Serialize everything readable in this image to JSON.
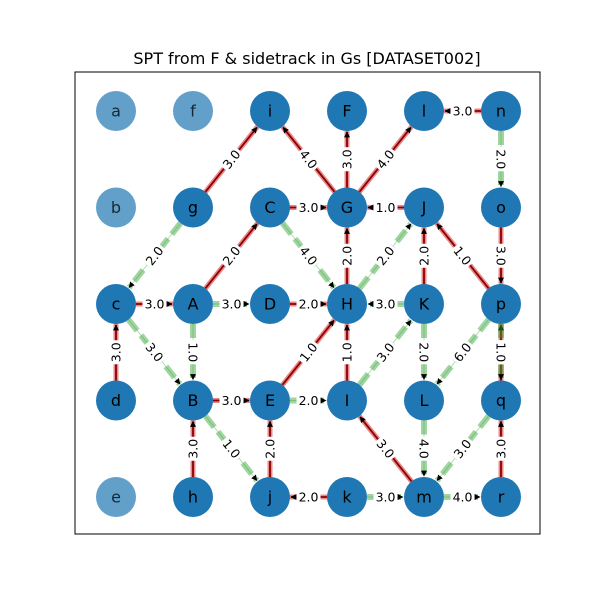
{
  "title": "SPT from F & sidetrack in Gs [DATASET002]",
  "colors": {
    "node": "#1f77b4",
    "tree_edge": "#8b0000",
    "tree_edge_highlight": "#d62728",
    "sidetrack_edge": "#2ca02c",
    "arrow": "#000000"
  },
  "nodes": [
    {
      "id": "a",
      "col": 0,
      "row": 0,
      "faded": true
    },
    {
      "id": "f",
      "col": 1,
      "row": 0,
      "faded": true
    },
    {
      "id": "i",
      "col": 2,
      "row": 0,
      "faded": false
    },
    {
      "id": "F",
      "col": 3,
      "row": 0,
      "faded": false
    },
    {
      "id": "l",
      "col": 4,
      "row": 0,
      "faded": false
    },
    {
      "id": "n",
      "col": 5,
      "row": 0,
      "faded": false
    },
    {
      "id": "b",
      "col": 0,
      "row": 1,
      "faded": true
    },
    {
      "id": "g",
      "col": 1,
      "row": 1,
      "faded": false
    },
    {
      "id": "C",
      "col": 2,
      "row": 1,
      "faded": false
    },
    {
      "id": "G",
      "col": 3,
      "row": 1,
      "faded": false
    },
    {
      "id": "J",
      "col": 4,
      "row": 1,
      "faded": false
    },
    {
      "id": "o",
      "col": 5,
      "row": 1,
      "faded": false
    },
    {
      "id": "c",
      "col": 0,
      "row": 2,
      "faded": false
    },
    {
      "id": "A",
      "col": 1,
      "row": 2,
      "faded": false
    },
    {
      "id": "D",
      "col": 2,
      "row": 2,
      "faded": false
    },
    {
      "id": "H",
      "col": 3,
      "row": 2,
      "faded": false
    },
    {
      "id": "K",
      "col": 4,
      "row": 2,
      "faded": false
    },
    {
      "id": "p",
      "col": 5,
      "row": 2,
      "faded": false
    },
    {
      "id": "d",
      "col": 0,
      "row": 3,
      "faded": false
    },
    {
      "id": "B",
      "col": 1,
      "row": 3,
      "faded": false
    },
    {
      "id": "E",
      "col": 2,
      "row": 3,
      "faded": false
    },
    {
      "id": "I",
      "col": 3,
      "row": 3,
      "faded": false
    },
    {
      "id": "L",
      "col": 4,
      "row": 3,
      "faded": false
    },
    {
      "id": "q",
      "col": 5,
      "row": 3,
      "faded": false
    },
    {
      "id": "e",
      "col": 0,
      "row": 4,
      "faded": true
    },
    {
      "id": "h",
      "col": 1,
      "row": 4,
      "faded": false
    },
    {
      "id": "j",
      "col": 2,
      "row": 4,
      "faded": false
    },
    {
      "id": "k",
      "col": 3,
      "row": 4,
      "faded": false
    },
    {
      "id": "m",
      "col": 4,
      "row": 4,
      "faded": false
    },
    {
      "id": "r",
      "col": 5,
      "row": 4,
      "faded": false
    }
  ],
  "edges": [
    {
      "from": "n",
      "to": "l",
      "label": "3.0",
      "kind": "tree"
    },
    {
      "from": "G",
      "to": "F",
      "label": "3.0",
      "kind": "tree"
    },
    {
      "from": "G",
      "to": "i",
      "label": "4.0",
      "kind": "tree"
    },
    {
      "from": "G",
      "to": "l",
      "label": "4.0",
      "kind": "tree"
    },
    {
      "from": "g",
      "to": "i",
      "label": "3.0",
      "kind": "tree"
    },
    {
      "from": "C",
      "to": "G",
      "label": "3.0",
      "kind": "tree"
    },
    {
      "from": "J",
      "to": "G",
      "label": "1.0",
      "kind": "tree"
    },
    {
      "from": "H",
      "to": "G",
      "label": "2.0",
      "kind": "tree"
    },
    {
      "from": "A",
      "to": "C",
      "label": "2.0",
      "kind": "tree"
    },
    {
      "from": "p",
      "to": "J",
      "label": "1.0",
      "kind": "tree"
    },
    {
      "from": "K",
      "to": "J",
      "label": "2.0",
      "kind": "tree"
    },
    {
      "from": "o",
      "to": "p",
      "label": "3.0",
      "kind": "tree"
    },
    {
      "from": "c",
      "to": "A",
      "label": "3.0",
      "kind": "tree"
    },
    {
      "from": "D",
      "to": "H",
      "label": "2.0",
      "kind": "tree"
    },
    {
      "from": "E",
      "to": "H",
      "label": "1.0",
      "kind": "tree"
    },
    {
      "from": "I",
      "to": "H",
      "label": "1.0",
      "kind": "tree"
    },
    {
      "from": "d",
      "to": "c",
      "label": "3.0",
      "kind": "tree"
    },
    {
      "from": "B",
      "to": "E",
      "label": "3.0",
      "kind": "tree"
    },
    {
      "from": "h",
      "to": "B",
      "label": "3.0",
      "kind": "tree"
    },
    {
      "from": "j",
      "to": "E",
      "label": "2.0",
      "kind": "tree"
    },
    {
      "from": "k",
      "to": "j",
      "label": "2.0",
      "kind": "tree"
    },
    {
      "from": "m",
      "to": "I",
      "label": "3.0",
      "kind": "tree"
    },
    {
      "from": "q",
      "to": "p",
      "label": "1.0",
      "kind": "tree"
    },
    {
      "from": "r",
      "to": "q",
      "label": "3.0",
      "kind": "tree"
    },
    {
      "from": "n",
      "to": "o",
      "label": "2.0",
      "kind": "sidetrack"
    },
    {
      "from": "g",
      "to": "c",
      "label": "2.0",
      "kind": "sidetrack"
    },
    {
      "from": "C",
      "to": "H",
      "label": "4.0",
      "kind": "sidetrack"
    },
    {
      "from": "K",
      "to": "H",
      "label": "3.0",
      "kind": "sidetrack"
    },
    {
      "from": "H",
      "to": "J",
      "label": "2.0",
      "kind": "sidetrack"
    },
    {
      "from": "A",
      "to": "D",
      "label": "3.0",
      "kind": "sidetrack"
    },
    {
      "from": "c",
      "to": "B",
      "label": "3.0",
      "kind": "sidetrack"
    },
    {
      "from": "A",
      "to": "B",
      "label": "1.0",
      "kind": "sidetrack"
    },
    {
      "from": "I",
      "to": "K",
      "label": "3.0",
      "kind": "sidetrack"
    },
    {
      "from": "K",
      "to": "L",
      "label": "2.0",
      "kind": "sidetrack"
    },
    {
      "from": "p",
      "to": "L",
      "label": "6.0",
      "kind": "sidetrack"
    },
    {
      "from": "E",
      "to": "I",
      "label": "2.0",
      "kind": "sidetrack"
    },
    {
      "from": "L",
      "to": "m",
      "label": "4.0",
      "kind": "sidetrack"
    },
    {
      "from": "B",
      "to": "j",
      "label": "1.0",
      "kind": "sidetrack"
    },
    {
      "from": "q",
      "to": "m",
      "label": "3.0",
      "kind": "sidetrack"
    },
    {
      "from": "k",
      "to": "m",
      "label": "3.0",
      "kind": "sidetrack"
    },
    {
      "from": "m",
      "to": "r",
      "label": "4.0",
      "kind": "sidetrack"
    },
    {
      "from": "p",
      "to": "q",
      "label": "1.0",
      "kind": "sidetrack"
    }
  ]
}
